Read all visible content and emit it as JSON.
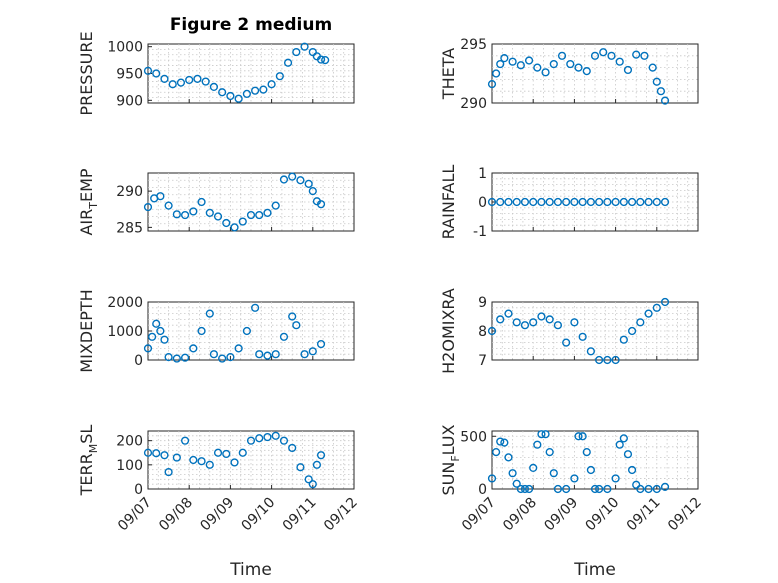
{
  "figure_title": "Figure 2 medium",
  "colors": {
    "marker": "#0072BD",
    "axis": "#262626",
    "grid": "#c8c8c8"
  },
  "chart_data": [
    {
      "type": "scatter",
      "ylabel": "PRESSURE",
      "ylabel_sub": "",
      "ylabel_tail": "",
      "ylim": [
        895,
        1005
      ],
      "yticks": [
        900,
        950,
        1000
      ],
      "xlim": [
        "09/07",
        "09/12"
      ],
      "xticks": [
        "09/07",
        "09/08",
        "09/09",
        "09/10",
        "09/11",
        "09/12"
      ],
      "grid": true,
      "x": [
        0.0,
        0.2,
        0.4,
        0.6,
        0.8,
        1.0,
        1.2,
        1.4,
        1.6,
        1.8,
        2.0,
        2.2,
        2.4,
        2.6,
        2.8,
        3.0,
        3.2,
        3.4,
        3.6,
        3.8,
        4.0,
        4.1,
        4.2,
        4.3
      ],
      "y": [
        955,
        950,
        940,
        930,
        933,
        938,
        940,
        935,
        925,
        915,
        908,
        903,
        912,
        918,
        920,
        930,
        945,
        970,
        990,
        1000,
        990,
        982,
        976,
        975
      ]
    },
    {
      "type": "scatter",
      "ylabel": "THETA",
      "ylabel_sub": "",
      "ylabel_tail": "",
      "ylim": [
        290,
        295
      ],
      "yticks": [
        290,
        295
      ],
      "xlim": [
        "09/07",
        "09/12"
      ],
      "xticks": [
        "09/07",
        "09/08",
        "09/09",
        "09/10",
        "09/11",
        "09/12"
      ],
      "grid": true,
      "x": [
        0.0,
        0.1,
        0.2,
        0.3,
        0.5,
        0.7,
        0.9,
        1.1,
        1.3,
        1.5,
        1.7,
        1.9,
        2.1,
        2.3,
        2.5,
        2.7,
        2.9,
        3.1,
        3.3,
        3.5,
        3.7,
        3.9,
        4.0,
        4.1,
        4.2
      ],
      "y": [
        291.6,
        292.5,
        293.3,
        293.8,
        293.5,
        293.2,
        293.6,
        293.0,
        292.6,
        293.3,
        294.0,
        293.3,
        293.0,
        292.7,
        294.0,
        294.3,
        294.0,
        293.5,
        292.8,
        294.1,
        294.0,
        293.0,
        291.8,
        291.0,
        290.2
      ]
    },
    {
      "type": "scatter",
      "ylabel": "AIR",
      "ylabel_sub": "T",
      "ylabel_tail": "EMP",
      "ylim": [
        284.5,
        292.5
      ],
      "yticks": [
        285,
        290
      ],
      "xlim": [
        "09/07",
        "09/12"
      ],
      "xticks": [
        "09/07",
        "09/08",
        "09/09",
        "09/10",
        "09/11",
        "09/12"
      ],
      "grid": true,
      "x": [
        0.0,
        0.15,
        0.3,
        0.5,
        0.7,
        0.9,
        1.1,
        1.3,
        1.5,
        1.7,
        1.9,
        2.1,
        2.3,
        2.5,
        2.7,
        2.9,
        3.1,
        3.3,
        3.5,
        3.7,
        3.9,
        4.0,
        4.1,
        4.2
      ],
      "y": [
        287.8,
        289.0,
        289.3,
        288.0,
        286.8,
        286.7,
        287.2,
        288.5,
        287.0,
        286.5,
        285.6,
        285.0,
        285.8,
        286.7,
        286.7,
        287.0,
        288.0,
        291.6,
        292.0,
        291.5,
        291.0,
        290.0,
        288.6,
        288.2
      ]
    },
    {
      "type": "scatter",
      "ylabel": "RAINFALL",
      "ylabel_sub": "",
      "ylabel_tail": "",
      "ylim": [
        -1,
        1
      ],
      "yticks": [
        -1,
        0,
        1
      ],
      "xlim": [
        "09/07",
        "09/12"
      ],
      "xticks": [
        "09/07",
        "09/08",
        "09/09",
        "09/10",
        "09/11",
        "09/12"
      ],
      "grid": true,
      "x": [
        0.0,
        0.2,
        0.4,
        0.6,
        0.8,
        1.0,
        1.2,
        1.4,
        1.6,
        1.8,
        2.0,
        2.2,
        2.4,
        2.6,
        2.8,
        3.0,
        3.2,
        3.4,
        3.6,
        3.8,
        4.0,
        4.2
      ],
      "y": [
        0,
        0,
        0,
        0,
        0,
        0,
        0,
        0,
        0,
        0,
        0,
        0,
        0,
        0,
        0,
        0,
        0,
        0,
        0,
        0,
        0,
        0
      ]
    },
    {
      "type": "scatter",
      "ylabel": "MIXDEPTH",
      "ylabel_sub": "",
      "ylabel_tail": "",
      "ylim": [
        0,
        2000
      ],
      "yticks": [
        0,
        1000,
        2000
      ],
      "xlim": [
        "09/07",
        "09/12"
      ],
      "xticks": [
        "09/07",
        "09/08",
        "09/09",
        "09/10",
        "09/11",
        "09/12"
      ],
      "grid": true,
      "x": [
        0.0,
        0.1,
        0.2,
        0.3,
        0.4,
        0.5,
        0.7,
        0.9,
        1.1,
        1.3,
        1.5,
        1.6,
        1.8,
        2.0,
        2.2,
        2.4,
        2.6,
        2.7,
        2.9,
        3.1,
        3.3,
        3.5,
        3.6,
        3.8,
        4.0,
        4.2
      ],
      "y": [
        400,
        800,
        1250,
        1000,
        700,
        100,
        50,
        80,
        400,
        1000,
        1600,
        200,
        50,
        100,
        400,
        1000,
        1800,
        200,
        150,
        200,
        800,
        1500,
        1200,
        200,
        300,
        550
      ]
    },
    {
      "type": "scatter",
      "ylabel": "H2OMIXRA",
      "ylabel_sub": "",
      "ylabel_tail": "",
      "ylim": [
        7,
        9
      ],
      "yticks": [
        7,
        8,
        9
      ],
      "xlim": [
        "09/07",
        "09/12"
      ],
      "xticks": [
        "09/07",
        "09/08",
        "09/09",
        "09/10",
        "09/11",
        "09/12"
      ],
      "grid": true,
      "x": [
        0.0,
        0.2,
        0.4,
        0.6,
        0.8,
        1.0,
        1.2,
        1.4,
        1.6,
        1.8,
        2.0,
        2.2,
        2.4,
        2.6,
        2.8,
        3.0,
        3.2,
        3.4,
        3.6,
        3.8,
        4.0,
        4.2
      ],
      "y": [
        8.0,
        8.4,
        8.6,
        8.3,
        8.2,
        8.3,
        8.5,
        8.4,
        8.2,
        7.6,
        8.3,
        7.8,
        7.3,
        7.0,
        7.0,
        7.0,
        7.7,
        8.0,
        8.3,
        8.6,
        8.8,
        9.0
      ]
    },
    {
      "type": "scatter",
      "ylabel": "TERR",
      "ylabel_sub": "M",
      "ylabel_tail": "SL",
      "ylim": [
        0,
        240
      ],
      "yticks": [
        0,
        100,
        200
      ],
      "xlim": [
        "09/07",
        "09/12"
      ],
      "xticks": [
        "09/07",
        "09/08",
        "09/09",
        "09/10",
        "09/11",
        "09/12"
      ],
      "grid": true,
      "x": [
        0.0,
        0.2,
        0.4,
        0.5,
        0.7,
        0.9,
        1.1,
        1.3,
        1.5,
        1.7,
        1.9,
        2.1,
        2.3,
        2.5,
        2.7,
        2.9,
        3.1,
        3.3,
        3.5,
        3.7,
        3.9,
        4.0,
        4.1,
        4.2
      ],
      "y": [
        150,
        148,
        140,
        70,
        130,
        200,
        120,
        115,
        100,
        150,
        145,
        110,
        150,
        200,
        210,
        215,
        220,
        200,
        170,
        90,
        40,
        20,
        100,
        140
      ]
    },
    {
      "type": "scatter",
      "ylabel": "SUN",
      "ylabel_sub": "F",
      "ylabel_tail": "LUX",
      "ylim": [
        0,
        550
      ],
      "yticks": [
        0,
        500
      ],
      "xlim": [
        "09/07",
        "09/12"
      ],
      "xticks": [
        "09/07",
        "09/08",
        "09/09",
        "09/10",
        "09/11",
        "09/12"
      ],
      "grid": true,
      "x": [
        0.0,
        0.1,
        0.2,
        0.3,
        0.4,
        0.5,
        0.6,
        0.7,
        0.8,
        0.9,
        1.0,
        1.1,
        1.2,
        1.3,
        1.4,
        1.5,
        1.6,
        1.8,
        2.0,
        2.1,
        2.2,
        2.3,
        2.4,
        2.5,
        2.6,
        2.8,
        3.0,
        3.1,
        3.2,
        3.3,
        3.4,
        3.5,
        3.6,
        3.8,
        4.0,
        4.2
      ],
      "y": [
        100,
        350,
        450,
        440,
        300,
        150,
        50,
        0,
        0,
        0,
        200,
        420,
        520,
        520,
        350,
        150,
        0,
        0,
        100,
        500,
        500,
        350,
        180,
        0,
        0,
        0,
        100,
        420,
        480,
        330,
        180,
        40,
        0,
        0,
        0,
        20
      ]
    }
  ]
}
